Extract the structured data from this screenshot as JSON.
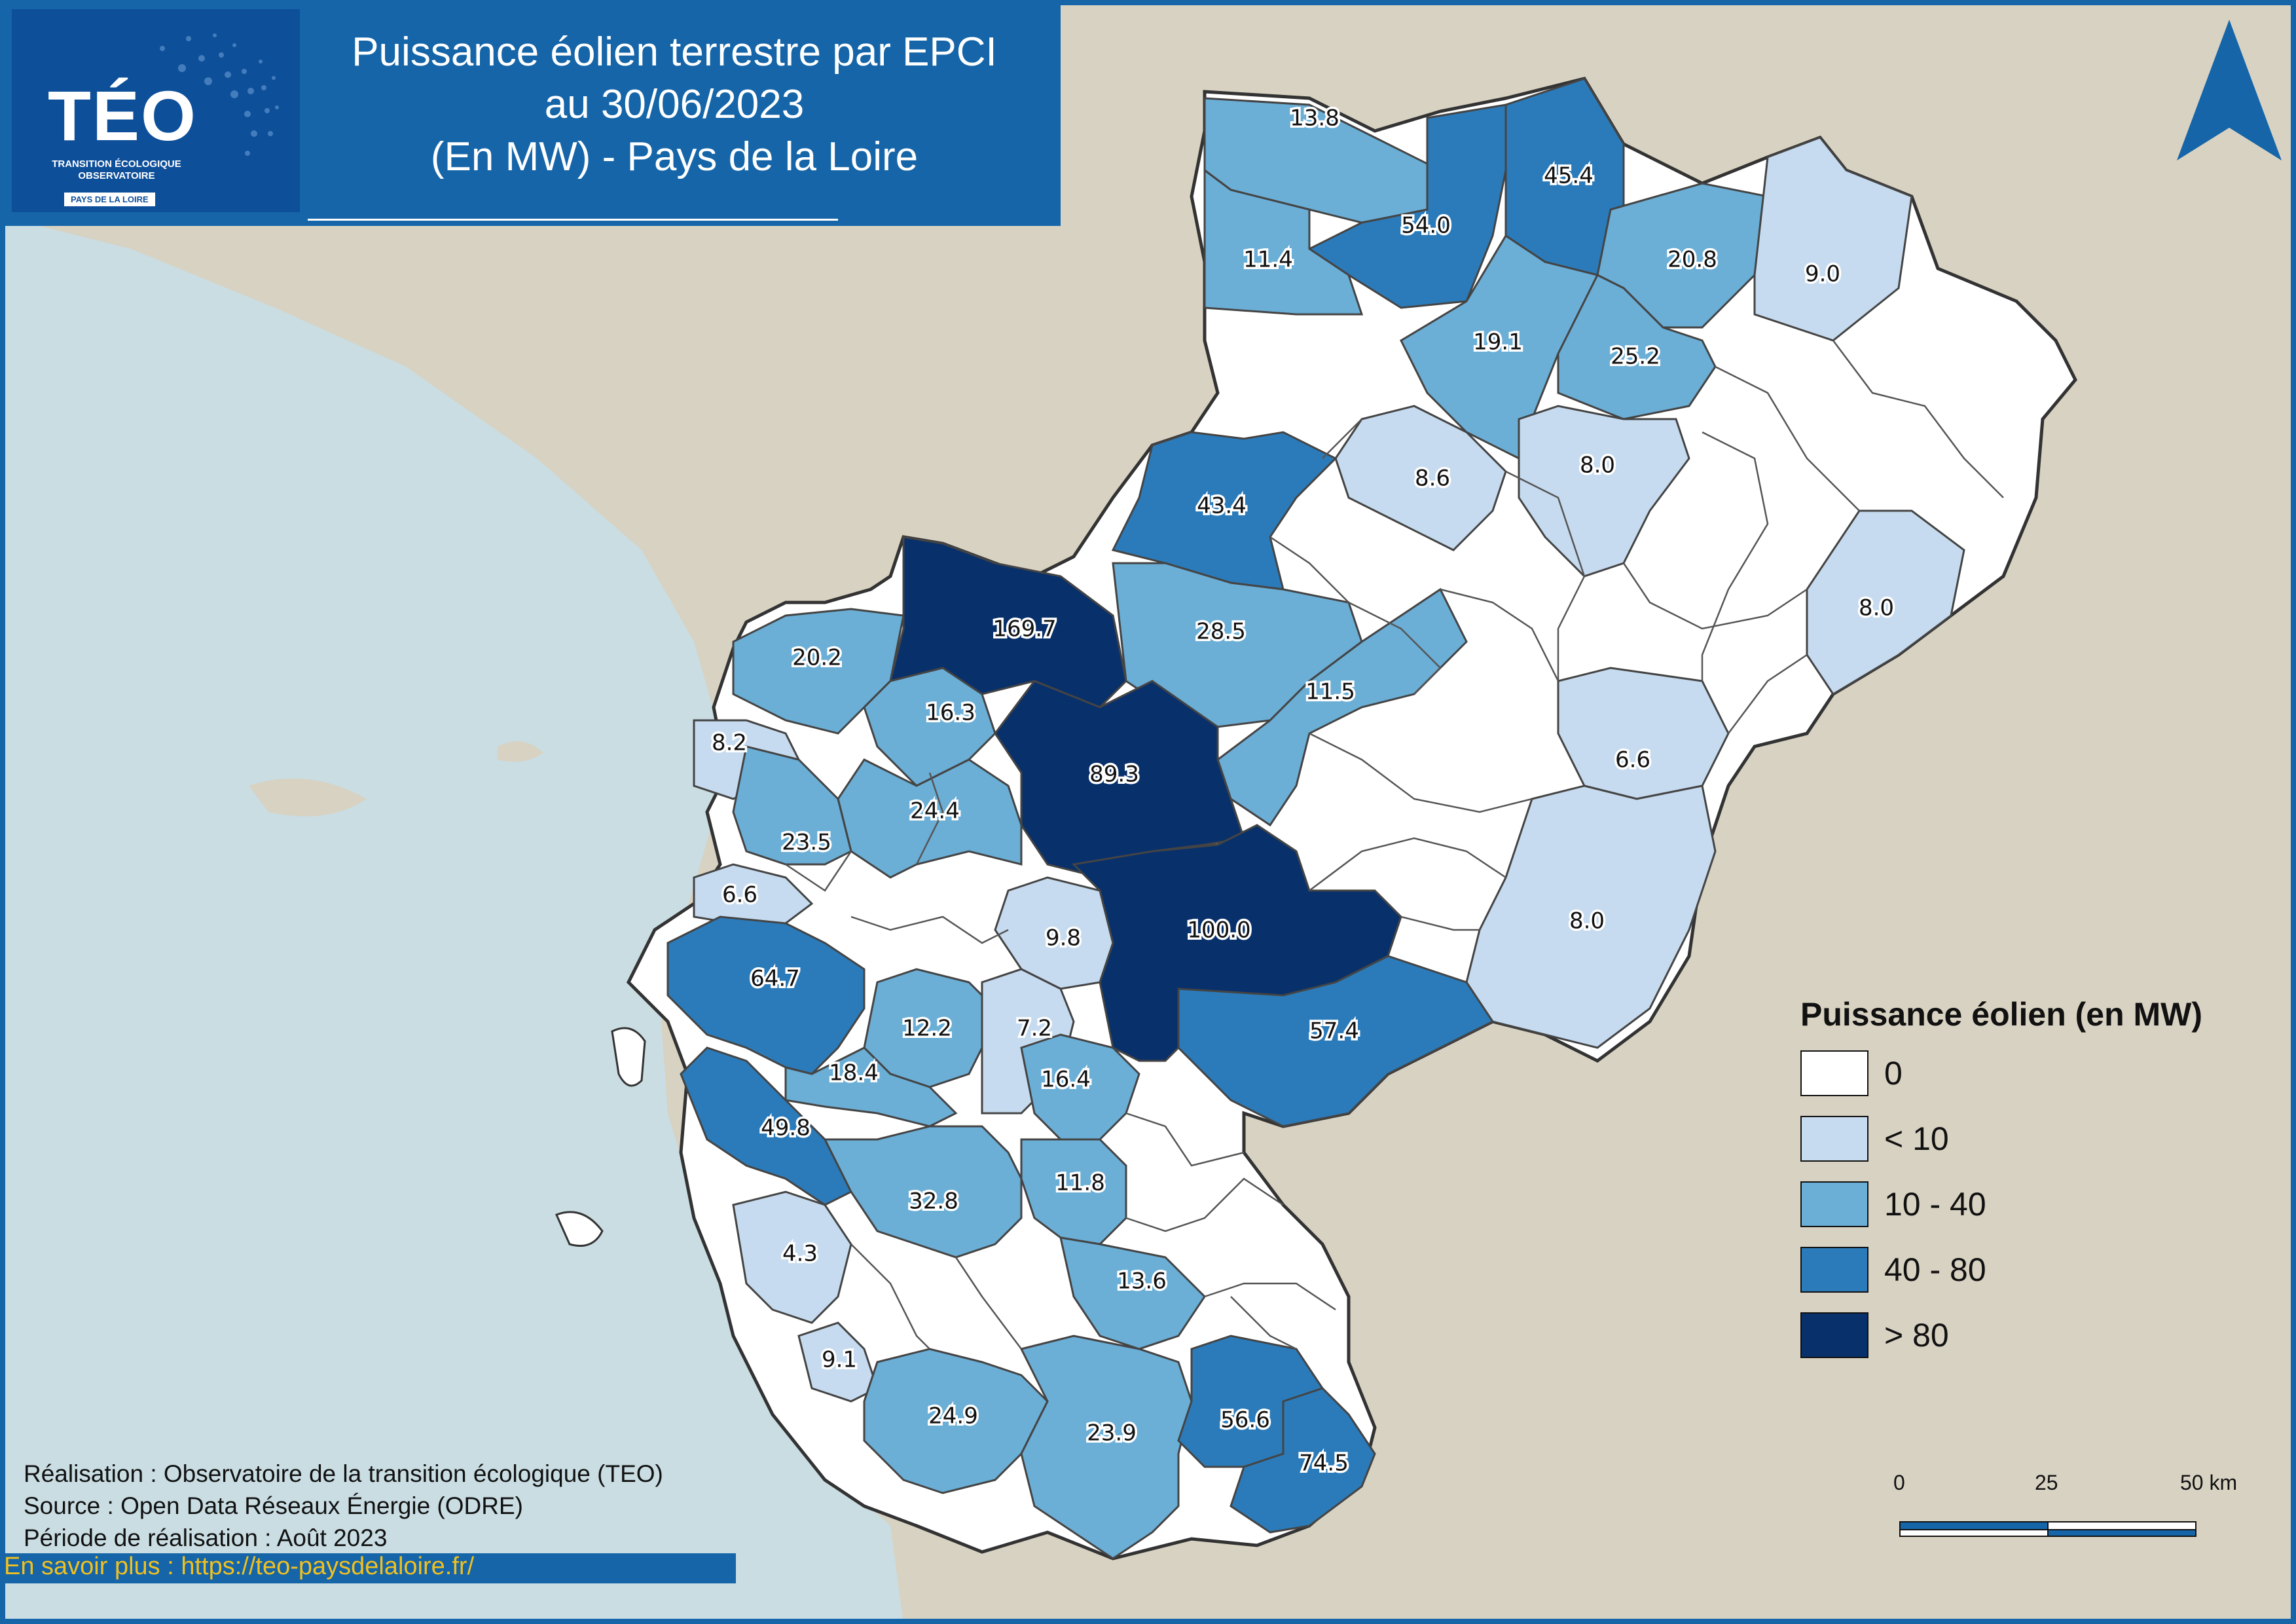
{
  "title": {
    "line1": "Puissance éolien terrestre par EPCI",
    "line2": "au 30/06/2023",
    "line3": "(En MW) - Pays de la Loire"
  },
  "logo": {
    "name": "TÉO",
    "subtitle_line1": "TRANSITION ÉCOLOGIQUE",
    "subtitle_line2": "OBSERVATOIRE",
    "region": "PAYS DE LA LOIRE"
  },
  "legend": {
    "title": "Puissance éolien (en MW)",
    "classes": [
      {
        "label": "0",
        "color": "#ffffff"
      },
      {
        "label": "< 10",
        "color": "#c6dbef"
      },
      {
        "label": "10 - 40",
        "color": "#6baed6"
      },
      {
        "label": "40 - 80",
        "color": "#2b7bba"
      },
      {
        "label": "> 80",
        "color": "#08306b"
      }
    ]
  },
  "scale": {
    "labels": [
      "0",
      "25",
      "50 km"
    ]
  },
  "credits": {
    "realisation": "Réalisation : Observatoire de la transition écologique (TEO)",
    "source": "Source : Open Data Réseaux Énergie (ODRE)",
    "periode": "Période de réalisation : Août 2023"
  },
  "link": "En savoir plus : https://teo-paysdelaloire.fr/",
  "colors": {
    "sea": "#c9dde3",
    "land_outside": "#d8d2c2",
    "frame": "#1565a8",
    "north_arrow": "#1565a8"
  },
  "map_values": [
    {
      "value": "13.8",
      "class": 2
    },
    {
      "value": "54.0",
      "class": 3
    },
    {
      "value": "45.4",
      "class": 3
    },
    {
      "value": "11.4",
      "class": 2
    },
    {
      "value": "20.8",
      "class": 2
    },
    {
      "value": "9.0",
      "class": 1
    },
    {
      "value": "19.1",
      "class": 2
    },
    {
      "value": "25.2",
      "class": 2
    },
    {
      "value": "8.6",
      "class": 1
    },
    {
      "value": "8.0",
      "class": 1
    },
    {
      "value": "43.4",
      "class": 3
    },
    {
      "value": "8.0",
      "class": 1
    },
    {
      "value": "169.7",
      "class": 4
    },
    {
      "value": "28.5",
      "class": 2
    },
    {
      "value": "20.2",
      "class": 2
    },
    {
      "value": "11.5",
      "class": 2
    },
    {
      "value": "16.3",
      "class": 2
    },
    {
      "value": "8.2",
      "class": 1
    },
    {
      "value": "89.3",
      "class": 4
    },
    {
      "value": "6.6",
      "class": 1
    },
    {
      "value": "24.4",
      "class": 2
    },
    {
      "value": "23.5",
      "class": 2
    },
    {
      "value": "6.6",
      "class": 1
    },
    {
      "value": "9.8",
      "class": 1
    },
    {
      "value": "100.0",
      "class": 4
    },
    {
      "value": "8.0",
      "class": 1
    },
    {
      "value": "64.7",
      "class": 3
    },
    {
      "value": "12.2",
      "class": 2
    },
    {
      "value": "7.2",
      "class": 1
    },
    {
      "value": "57.4",
      "class": 3
    },
    {
      "value": "18.4",
      "class": 2
    },
    {
      "value": "16.4",
      "class": 2
    },
    {
      "value": "49.8",
      "class": 3
    },
    {
      "value": "11.8",
      "class": 2
    },
    {
      "value": "32.8",
      "class": 2
    },
    {
      "value": "4.3",
      "class": 1
    },
    {
      "value": "13.6",
      "class": 2
    },
    {
      "value": "9.1",
      "class": 1
    },
    {
      "value": "24.9",
      "class": 2
    },
    {
      "value": "23.9",
      "class": 2
    },
    {
      "value": "56.6",
      "class": 3
    },
    {
      "value": "74.5",
      "class": 3
    }
  ]
}
